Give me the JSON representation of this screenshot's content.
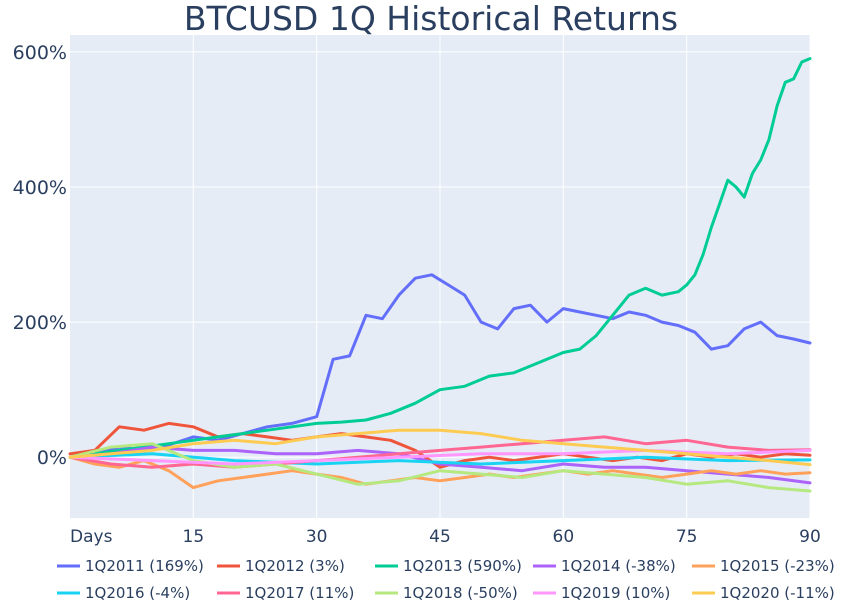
{
  "chart_data": {
    "type": "line",
    "title": "BTCUSD 1Q Historical Returns",
    "xlabel": "",
    "ylabel": "",
    "x_tick_labels": [
      "Days",
      "15",
      "30",
      "45",
      "60",
      "75",
      "90"
    ],
    "x_tick_values": [
      0,
      15,
      30,
      45,
      60,
      75,
      90
    ],
    "y_tick_labels": [
      "0%",
      "200%",
      "400%",
      "600%"
    ],
    "y_tick_values": [
      0,
      200,
      400,
      600
    ],
    "xlim": [
      0,
      90
    ],
    "ylim": [
      -90,
      625
    ],
    "grid": true,
    "legend": "bottom",
    "plot_background": "#e5ecf6",
    "series": [
      {
        "name": "1Q2011 (169%)",
        "color": "#636efa",
        "x": [
          0,
          3,
          6,
          9,
          12,
          15,
          18,
          21,
          24,
          27,
          30,
          32,
          34,
          36,
          38,
          40,
          42,
          44,
          46,
          48,
          50,
          52,
          54,
          56,
          58,
          60,
          62,
          64,
          66,
          68,
          70,
          72,
          74,
          76,
          78,
          80,
          82,
          84,
          86,
          88,
          90
        ],
        "y": [
          0,
          5,
          15,
          10,
          18,
          30,
          25,
          35,
          45,
          50,
          60,
          145,
          150,
          210,
          205,
          240,
          265,
          270,
          255,
          240,
          200,
          190,
          220,
          225,
          200,
          220,
          215,
          210,
          205,
          215,
          210,
          200,
          195,
          185,
          160,
          165,
          190,
          200,
          180,
          175,
          169
        ]
      },
      {
        "name": "1Q2012 (3%)",
        "color": "#ef553b",
        "x": [
          0,
          3,
          6,
          9,
          12,
          15,
          18,
          21,
          24,
          27,
          30,
          33,
          36,
          39,
          42,
          45,
          48,
          51,
          54,
          57,
          60,
          63,
          66,
          69,
          72,
          75,
          78,
          81,
          84,
          87,
          90
        ],
        "y": [
          5,
          10,
          45,
          40,
          50,
          45,
          30,
          35,
          30,
          25,
          30,
          35,
          30,
          25,
          10,
          -15,
          -5,
          0,
          -5,
          0,
          5,
          0,
          -5,
          0,
          -5,
          5,
          0,
          5,
          0,
          5,
          3
        ]
      },
      {
        "name": "1Q2013 (590%)",
        "color": "#00cc96",
        "x": [
          0,
          3,
          6,
          9,
          12,
          15,
          18,
          21,
          24,
          27,
          30,
          33,
          36,
          39,
          42,
          45,
          48,
          51,
          54,
          57,
          60,
          62,
          64,
          66,
          68,
          70,
          72,
          74,
          75,
          76,
          77,
          78,
          79,
          80,
          81,
          82,
          83,
          84,
          85,
          86,
          87,
          88,
          89,
          90
        ],
        "y": [
          0,
          5,
          10,
          15,
          20,
          25,
          30,
          35,
          40,
          45,
          50,
          52,
          55,
          65,
          80,
          100,
          105,
          120,
          125,
          140,
          155,
          160,
          180,
          210,
          240,
          250,
          240,
          245,
          255,
          270,
          300,
          340,
          375,
          410,
          400,
          385,
          420,
          440,
          470,
          520,
          555,
          560,
          585,
          590
        ]
      },
      {
        "name": "1Q2014 (-38%)",
        "color": "#ab63fa",
        "x": [
          0,
          5,
          10,
          15,
          20,
          25,
          30,
          35,
          40,
          45,
          50,
          55,
          60,
          65,
          70,
          75,
          80,
          85,
          90
        ],
        "y": [
          0,
          5,
          15,
          10,
          10,
          5,
          5,
          10,
          5,
          -10,
          -15,
          -20,
          -10,
          -15,
          -15,
          -20,
          -25,
          -30,
          -38
        ]
      },
      {
        "name": "1Q2015 (-23%)",
        "color": "#ffa15a",
        "x": [
          0,
          3,
          6,
          9,
          12,
          15,
          18,
          21,
          24,
          27,
          30,
          33,
          36,
          39,
          42,
          45,
          48,
          51,
          54,
          57,
          60,
          63,
          66,
          69,
          72,
          75,
          78,
          81,
          84,
          87,
          90
        ],
        "y": [
          0,
          -10,
          -15,
          -5,
          -20,
          -45,
          -35,
          -30,
          -25,
          -20,
          -25,
          -30,
          -40,
          -35,
          -30,
          -35,
          -30,
          -25,
          -30,
          -25,
          -20,
          -25,
          -20,
          -25,
          -30,
          -25,
          -20,
          -25,
          -20,
          -25,
          -23
        ]
      },
      {
        "name": "1Q2016 (-4%)",
        "color": "#19d3f3",
        "x": [
          0,
          10,
          20,
          30,
          40,
          50,
          60,
          70,
          80,
          90
        ],
        "y": [
          0,
          5,
          -5,
          -10,
          -5,
          -10,
          -5,
          0,
          -5,
          -4
        ]
      },
      {
        "name": "1Q2017 (11%)",
        "color": "#ff6692",
        "x": [
          0,
          5,
          10,
          15,
          20,
          25,
          30,
          35,
          40,
          45,
          50,
          55,
          60,
          65,
          70,
          75,
          80,
          85,
          90
        ],
        "y": [
          0,
          -10,
          -15,
          -10,
          -15,
          -10,
          -5,
          0,
          5,
          10,
          15,
          20,
          25,
          30,
          20,
          25,
          15,
          10,
          11
        ]
      },
      {
        "name": "1Q2018 (-50%)",
        "color": "#b6e880",
        "x": [
          0,
          5,
          10,
          15,
          20,
          25,
          30,
          35,
          40,
          45,
          50,
          55,
          60,
          65,
          70,
          75,
          80,
          85,
          90
        ],
        "y": [
          0,
          15,
          20,
          -5,
          -15,
          -10,
          -25,
          -40,
          -35,
          -20,
          -25,
          -30,
          -20,
          -25,
          -30,
          -40,
          -35,
          -45,
          -50
        ]
      },
      {
        "name": "1Q2019 (10%)",
        "color": "#ff97ff",
        "x": [
          0,
          10,
          20,
          30,
          40,
          50,
          60,
          70,
          80,
          90
        ],
        "y": [
          0,
          -5,
          -10,
          -5,
          0,
          5,
          5,
          10,
          5,
          10
        ]
      },
      {
        "name": "1Q2020 (-11%)",
        "color": "#fecb52",
        "x": [
          0,
          5,
          10,
          15,
          20,
          25,
          30,
          35,
          40,
          45,
          50,
          55,
          60,
          65,
          70,
          75,
          80,
          85,
          90
        ],
        "y": [
          0,
          5,
          10,
          20,
          25,
          20,
          30,
          35,
          40,
          40,
          35,
          25,
          20,
          15,
          10,
          5,
          0,
          -5,
          -11
        ]
      }
    ]
  }
}
